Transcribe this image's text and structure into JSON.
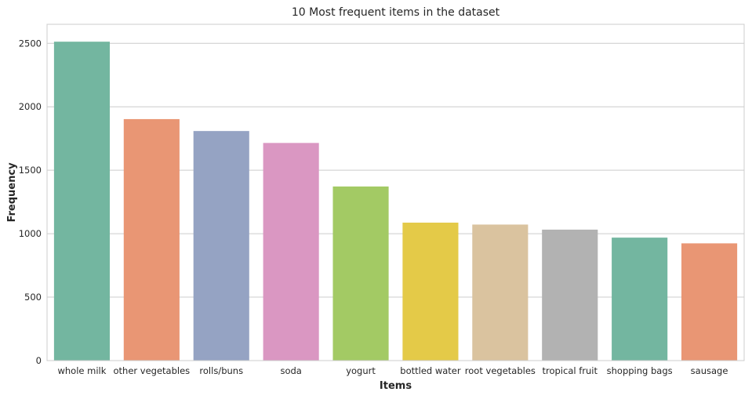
{
  "chart_data": {
    "type": "bar",
    "title": "10 Most frequent items in the dataset",
    "xlabel": "Items",
    "ylabel": "Frequency",
    "categories": [
      "whole milk",
      "other vegetables",
      "rolls/buns",
      "soda",
      "yogurt",
      "bottled water",
      "root vegetables",
      "tropical fruit",
      "shopping bags",
      "sausage"
    ],
    "values": [
      2513,
      1903,
      1809,
      1715,
      1372,
      1087,
      1072,
      1032,
      969,
      924
    ],
    "colors": [
      "#73b6a0",
      "#e99674",
      "#95a3c3",
      "#da97c2",
      "#a3ca64",
      "#e4ca48",
      "#dac39f",
      "#b2b2b2",
      "#73b6a0",
      "#e99674"
    ],
    "ylim": [
      0,
      2650
    ],
    "yticks": [
      0,
      500,
      1000,
      1500,
      2000,
      2500
    ],
    "grid": "horizontal",
    "legend": "none"
  }
}
